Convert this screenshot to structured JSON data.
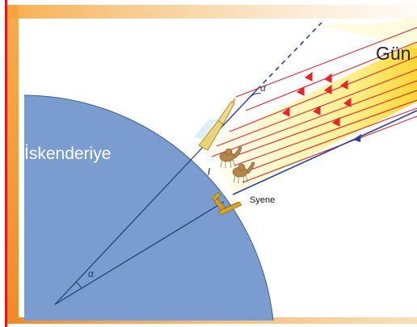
{
  "diagram": {
    "sun_label": "Gün",
    "city_alexandria": "İskenderiye",
    "city_syene": "Syene",
    "angle_symbol_top": "α",
    "angle_symbol_center": "α",
    "arc_length_symbol": "l",
    "colors": {
      "earth": "#7b9cce",
      "earth_outline": "#3a5f9b",
      "ray_red": "#e3262b",
      "ray_blue": "#2b3f8f",
      "sun_yellow": "#ffe45a",
      "frame_red": "#e01a1a",
      "frame_orange": "#f4a23c",
      "well_gold": "#d9a62a"
    }
  }
}
